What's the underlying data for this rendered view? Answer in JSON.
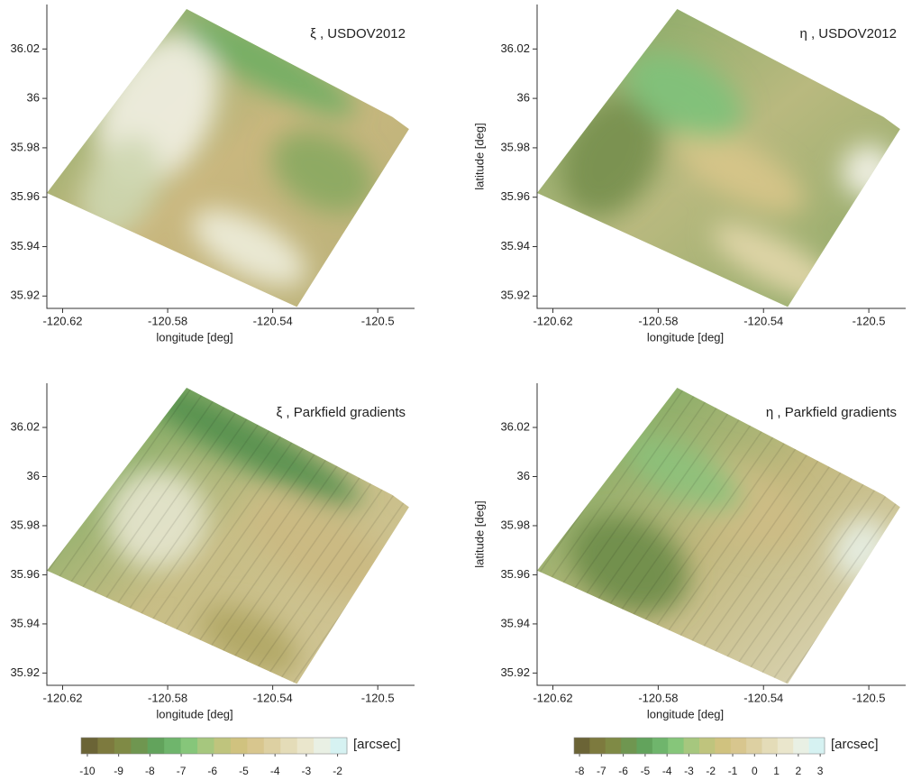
{
  "chart_data": [
    {
      "type": "heatmap",
      "title": "ξ , USDOV2012",
      "xlabel": "longitude [deg]",
      "xlim": [
        -120.626,
        -120.486
      ],
      "ylim": [
        35.915,
        36.038
      ],
      "xticks": [
        -120.62,
        -120.58,
        -120.54,
        -120.5
      ],
      "yticks": [
        35.92,
        35.94,
        35.96,
        35.98,
        36,
        36.02
      ]
    },
    {
      "type": "heatmap",
      "title": "η , USDOV2012",
      "xlabel": "longitude [deg]",
      "ylabel": "latitude [deg]",
      "xlim": [
        -120.626,
        -120.486
      ],
      "ylim": [
        35.915,
        36.038
      ],
      "xticks": [
        -120.62,
        -120.58,
        -120.54,
        -120.5
      ],
      "yticks": [
        35.92,
        35.94,
        35.96,
        35.98,
        36,
        36.02
      ]
    },
    {
      "type": "heatmap",
      "title": "ξ , Parkfield gradients",
      "xlabel": "longitude [deg]",
      "xlim": [
        -120.626,
        -120.486
      ],
      "ylim": [
        35.915,
        36.038
      ],
      "xticks": [
        -120.62,
        -120.58,
        -120.54,
        -120.5
      ],
      "yticks": [
        35.92,
        35.94,
        35.96,
        35.98,
        36,
        36.02
      ],
      "colorbar": {
        "label": "[arcsec]",
        "lim": [
          -10.2,
          -1.7
        ],
        "ticks": [
          -10,
          -9,
          -8,
          -7,
          -6,
          -5,
          -4,
          -3,
          -2
        ],
        "colors": [
          "#6b6436",
          "#7d7a3e",
          "#7f8a45",
          "#6f9650",
          "#62a35c",
          "#6fb56c",
          "#86c67a",
          "#a6c77e",
          "#bfc47d",
          "#d0c27f",
          "#d8c68e",
          "#ddd0a2",
          "#e4dcb8",
          "#eae6cc",
          "#e9f0e4",
          "#d6f2f2"
        ]
      }
    },
    {
      "type": "heatmap",
      "title": "η , Parkfield gradients",
      "xlabel": "longitude [deg]",
      "ylabel": "latitude [deg]",
      "xlim": [
        -120.626,
        -120.486
      ],
      "ylim": [
        35.915,
        36.038
      ],
      "xticks": [
        -120.62,
        -120.58,
        -120.54,
        -120.5
      ],
      "yticks": [
        35.92,
        35.94,
        35.96,
        35.98,
        36,
        36.02
      ],
      "colorbar": {
        "label": "[arcsec]",
        "lim": [
          -8.25,
          3.2
        ],
        "ticks": [
          -8,
          -7,
          -6,
          -5,
          -4,
          -3,
          -2,
          -1,
          0,
          1,
          2,
          3
        ],
        "colors": [
          "#6b6436",
          "#7d7a3e",
          "#7f8a45",
          "#6f9650",
          "#62a35c",
          "#6fb56c",
          "#86c67a",
          "#a6c77e",
          "#bfc47d",
          "#d0c27f",
          "#d8c68e",
          "#ddd0a2",
          "#e4dcb8",
          "#eae6cc",
          "#e9f0e4",
          "#d6f2f2"
        ]
      }
    }
  ]
}
